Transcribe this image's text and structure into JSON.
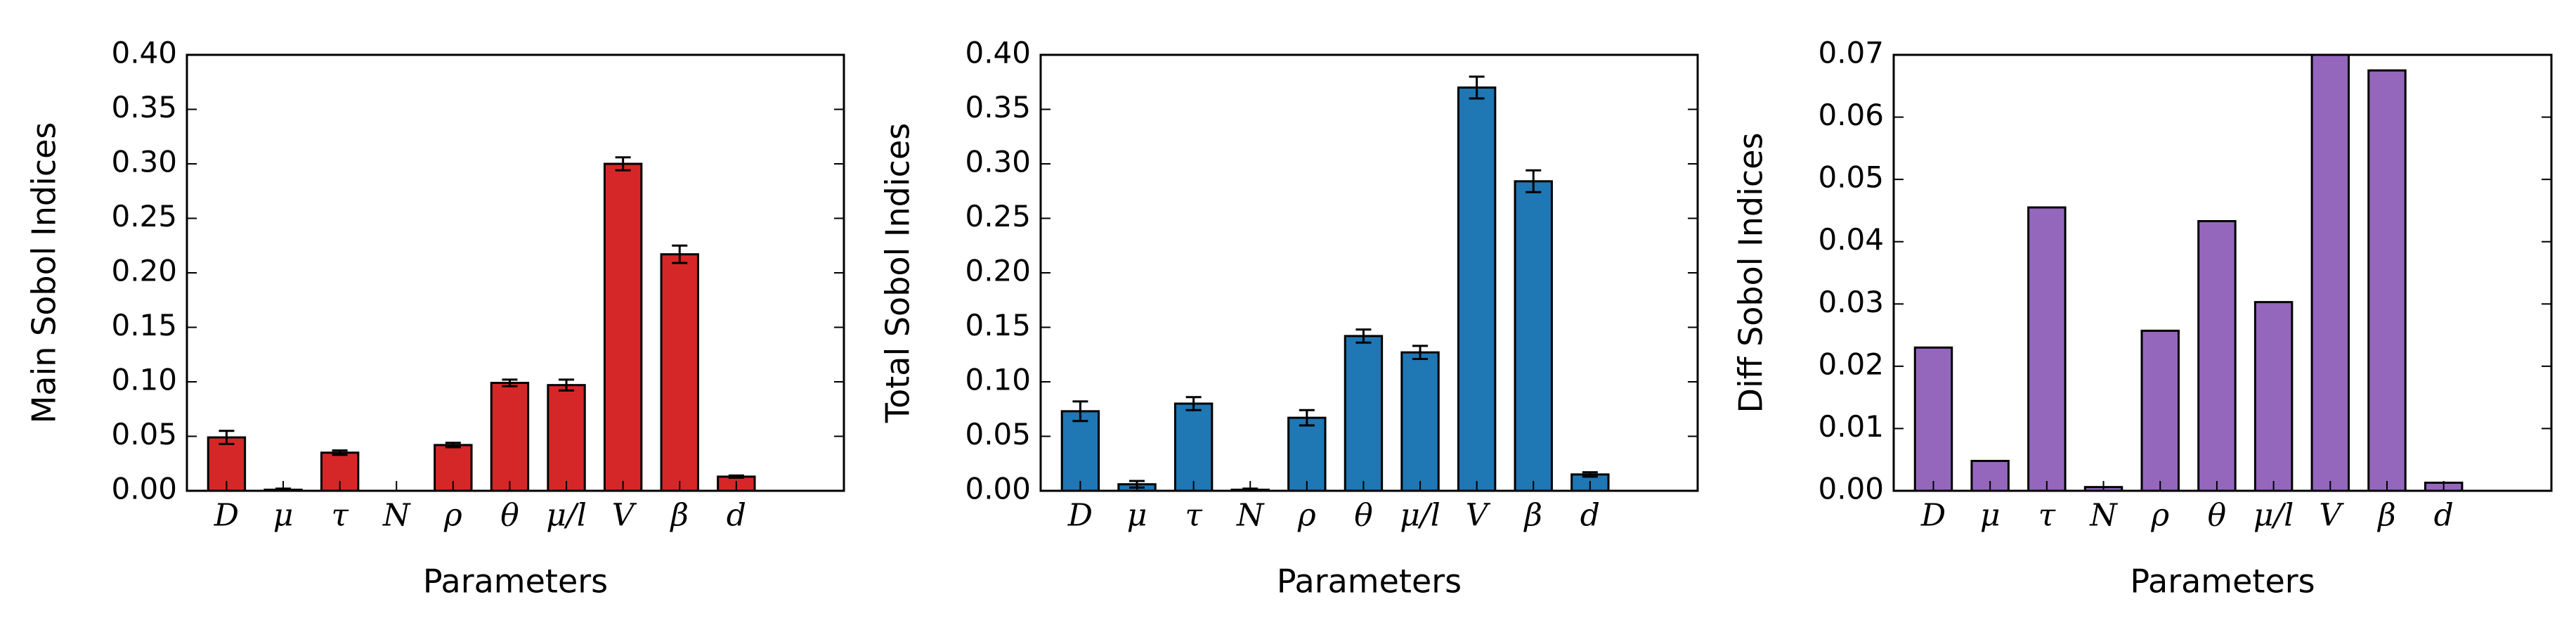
{
  "chart_data": [
    {
      "type": "bar",
      "ylabel": "Main Sobol Indices",
      "xlabel": "Parameters",
      "color": "#d62728",
      "categories": [
        "D",
        "μ",
        "τ",
        "N",
        "ρ",
        "θ",
        "μ/l",
        "V",
        "β",
        "d"
      ],
      "values": [
        0.049,
        0.001,
        0.035,
        0.0,
        0.042,
        0.099,
        0.097,
        0.3,
        0.217,
        0.013
      ],
      "errors": [
        0.006,
        0.001,
        0.002,
        0.0,
        0.002,
        0.003,
        0.005,
        0.006,
        0.008,
        0.001
      ],
      "ylim": [
        0,
        0.4
      ],
      "yticks": [
        {
          "value": 0,
          "label": "0.00"
        },
        0.05,
        {
          "value": 0.1,
          "label": "0.10"
        },
        0.15,
        {
          "value": 0.2,
          "label": "0.20"
        },
        0.25,
        {
          "value": 0.3,
          "label": "0.30"
        },
        0.35,
        {
          "value": 0.4,
          "label": "0.40"
        }
      ]
    },
    {
      "type": "bar",
      "ylabel": "Total Sobol Indices",
      "xlabel": "Parameters",
      "color": "#1f77b4",
      "categories": [
        "D",
        "μ",
        "τ",
        "N",
        "ρ",
        "θ",
        "μ/l",
        "V",
        "β",
        "d"
      ],
      "values": [
        0.073,
        0.006,
        0.08,
        0.001,
        0.067,
        0.142,
        0.127,
        0.37,
        0.284,
        0.015
      ],
      "errors": [
        0.009,
        0.003,
        0.006,
        0.001,
        0.007,
        0.006,
        0.006,
        0.01,
        0.01,
        0.002
      ],
      "ylim": [
        0,
        0.4
      ],
      "yticks": [
        {
          "value": 0,
          "label": "0.00"
        },
        0.05,
        {
          "value": 0.1,
          "label": "0.10"
        },
        0.15,
        {
          "value": 0.2,
          "label": "0.20"
        },
        0.25,
        {
          "value": 0.3,
          "label": "0.30"
        },
        0.35,
        {
          "value": 0.4,
          "label": "0.40"
        }
      ]
    },
    {
      "type": "bar",
      "ylabel": "Diff Sobol Indices",
      "xlabel": "Parameters",
      "color": "#9467bd",
      "categories": [
        "D",
        "μ",
        "τ",
        "N",
        "ρ",
        "θ",
        "μ/l",
        "V",
        "β",
        "d"
      ],
      "values": [
        0.023,
        0.0048,
        0.0455,
        0.0006,
        0.0257,
        0.0433,
        0.0303,
        0.07,
        0.0675,
        0.0013
      ],
      "ylim": [
        0,
        0.07
      ],
      "yticks": [
        {
          "value": 0,
          "label": "0.00"
        },
        0.01,
        0.02,
        0.03,
        0.04,
        0.05,
        0.06,
        0.07
      ]
    }
  ]
}
